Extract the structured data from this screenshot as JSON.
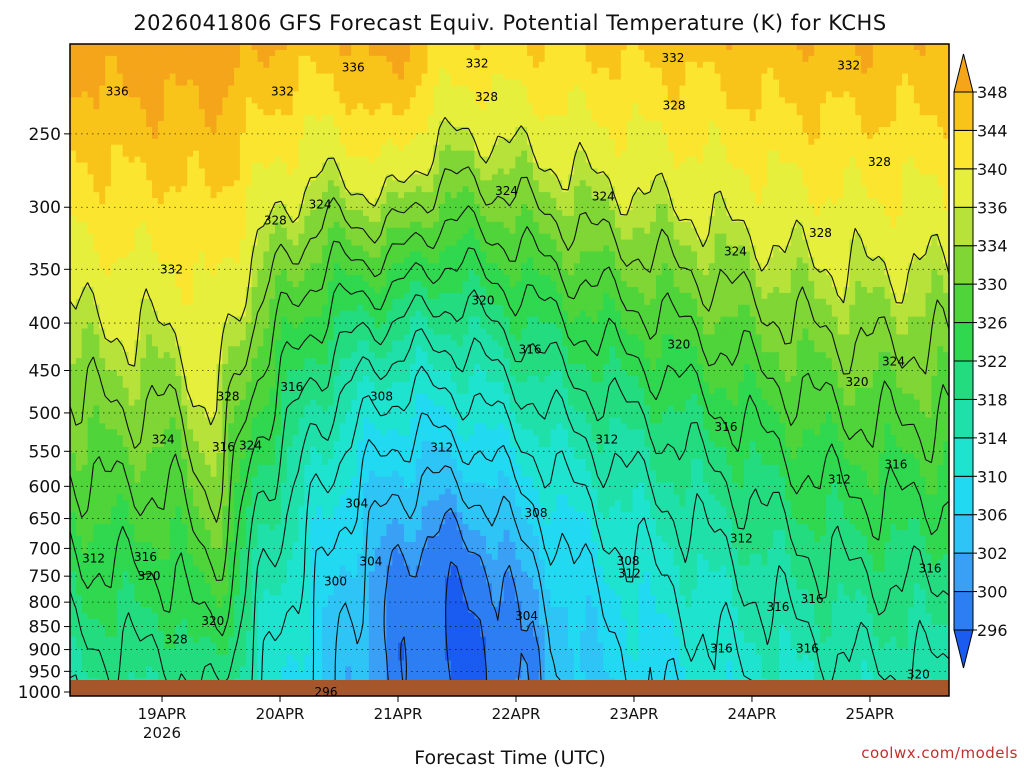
{
  "chart_data": {
    "type": "heatmap",
    "title": "2026041806 GFS Forecast Equiv. Potential Temperature (K) for KCHS",
    "xlabel": "Forecast Time (UTC)",
    "ylabel": "",
    "credit": "coolwx.com/models",
    "x_range": [
      -0.78,
      6.67
    ],
    "x_ticks": [
      {
        "value": 0,
        "label": "19APR",
        "sublabel": "2026"
      },
      {
        "value": 1,
        "label": "20APR",
        "sublabel": ""
      },
      {
        "value": 2,
        "label": "21APR",
        "sublabel": ""
      },
      {
        "value": 3,
        "label": "22APR",
        "sublabel": ""
      },
      {
        "value": 4,
        "label": "23APR",
        "sublabel": ""
      },
      {
        "value": 5,
        "label": "24APR",
        "sublabel": ""
      },
      {
        "value": 6,
        "label": "25APR",
        "sublabel": ""
      }
    ],
    "y_axis": {
      "scale": "log-pressure",
      "reversed": true,
      "range_hpa": [
        1010,
        200
      ]
    },
    "y_ticks": [
      250,
      300,
      350,
      400,
      450,
      500,
      550,
      600,
      650,
      700,
      750,
      800,
      850,
      900,
      950,
      1000
    ],
    "colorbar": {
      "levels": [
        296,
        300,
        302,
        306,
        310,
        314,
        318,
        322,
        326,
        330,
        334,
        336,
        340,
        344,
        348
      ],
      "colors": [
        "#1a5bf0",
        "#2d7ef2",
        "#3aa0f5",
        "#2ec4f6",
        "#22d9f2",
        "#1ee3cf",
        "#1fe0a8",
        "#24dc80",
        "#2fd84e",
        "#4fd43a",
        "#7fd634",
        "#b6e23a",
        "#e6ef3c",
        "#fbe52e",
        "#f9c41a",
        "#f4a51a"
      ]
    },
    "contour_levels": [
      296,
      300,
      304,
      308,
      312,
      316,
      320,
      324,
      328,
      332,
      336
    ],
    "contour_labels": [
      {
        "value": "336",
        "x": -0.38,
        "p": 225
      },
      {
        "value": "336",
        "x": 1.62,
        "p": 212
      },
      {
        "value": "332",
        "x": 0.08,
        "p": 350
      },
      {
        "value": "332",
        "x": 1.02,
        "p": 225
      },
      {
        "value": "332",
        "x": 2.67,
        "p": 210
      },
      {
        "value": "332",
        "x": 4.33,
        "p": 207
      },
      {
        "value": "332",
        "x": 5.82,
        "p": 211
      },
      {
        "value": "328",
        "x": 2.75,
        "p": 228
      },
      {
        "value": "328",
        "x": 4.34,
        "p": 233
      },
      {
        "value": "328",
        "x": 6.08,
        "p": 268
      },
      {
        "value": "328",
        "x": 0.96,
        "p": 310
      },
      {
        "value": "328",
        "x": 5.58,
        "p": 320
      },
      {
        "value": "328",
        "x": 0.56,
        "p": 480
      },
      {
        "value": "328",
        "x": 0.12,
        "p": 878
      },
      {
        "value": "324",
        "x": 1.34,
        "p": 298
      },
      {
        "value": "324",
        "x": 2.92,
        "p": 288
      },
      {
        "value": "324",
        "x": 3.74,
        "p": 292
      },
      {
        "value": "324",
        "x": 4.86,
        "p": 335
      },
      {
        "value": "324",
        "x": 0.01,
        "p": 534
      },
      {
        "value": "324",
        "x": 0.75,
        "p": 542
      },
      {
        "value": "324",
        "x": 6.2,
        "p": 440
      },
      {
        "value": "320",
        "x": 2.72,
        "p": 378
      },
      {
        "value": "320",
        "x": 4.38,
        "p": 422
      },
      {
        "value": "320",
        "x": 5.89,
        "p": 463
      },
      {
        "value": "320",
        "x": 0.43,
        "p": 838
      },
      {
        "value": "320",
        "x": -0.11,
        "p": 750
      },
      {
        "value": "320",
        "x": 6.41,
        "p": 958
      },
      {
        "value": "316",
        "x": 1.1,
        "p": 469
      },
      {
        "value": "316",
        "x": 3.12,
        "p": 427
      },
      {
        "value": "316",
        "x": 4.78,
        "p": 518
      },
      {
        "value": "316",
        "x": 6.22,
        "p": 568
      },
      {
        "value": "316",
        "x": 0.52,
        "p": 544
      },
      {
        "value": "316",
        "x": -0.14,
        "p": 715
      },
      {
        "value": "316",
        "x": 6.51,
        "p": 736
      },
      {
        "value": "316",
        "x": 5.22,
        "p": 810
      },
      {
        "value": "316",
        "x": 5.51,
        "p": 794
      },
      {
        "value": "316",
        "x": 4.74,
        "p": 898
      },
      {
        "value": "316",
        "x": 5.47,
        "p": 898
      },
      {
        "value": "312",
        "x": 2.37,
        "p": 545
      },
      {
        "value": "312",
        "x": 3.77,
        "p": 534
      },
      {
        "value": "312",
        "x": 5.74,
        "p": 590
      },
      {
        "value": "312",
        "x": 4.91,
        "p": 683
      },
      {
        "value": "312",
        "x": 3.96,
        "p": 745
      },
      {
        "value": "312",
        "x": -0.58,
        "p": 718
      },
      {
        "value": "308",
        "x": 1.86,
        "p": 480
      },
      {
        "value": "308",
        "x": 3.17,
        "p": 641
      },
      {
        "value": "308",
        "x": 3.95,
        "p": 722
      },
      {
        "value": "304",
        "x": 1.65,
        "p": 626
      },
      {
        "value": "304",
        "x": 1.77,
        "p": 723
      },
      {
        "value": "304",
        "x": 3.09,
        "p": 828
      },
      {
        "value": "300",
        "x": 1.47,
        "p": 760
      },
      {
        "value": "296",
        "x": 1.39,
        "p": 1000
      }
    ]
  }
}
